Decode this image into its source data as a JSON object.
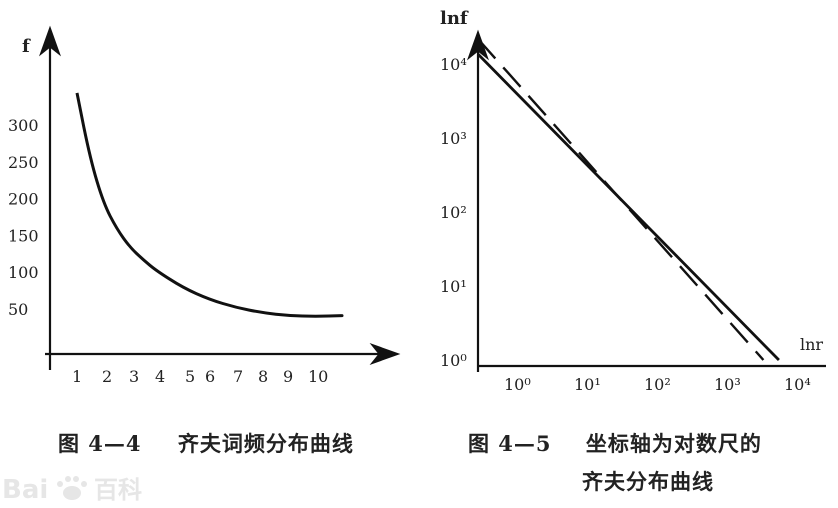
{
  "chart_data": [
    {
      "type": "line",
      "ylabel": "f",
      "x_ticks": [
        "1",
        "2",
        "3",
        "4",
        "5",
        "6",
        "7",
        "8",
        "9",
        "10"
      ],
      "y_ticks": [
        "300",
        "250",
        "200",
        "150",
        "100",
        "50"
      ],
      "series": [
        {
          "x": [
            1,
            1.5,
            2,
            2.5,
            3,
            3.5,
            4,
            5,
            6,
            7,
            8,
            9,
            10,
            11
          ],
          "y": [
            345,
            255,
            195,
            160,
            135,
            118,
            103,
            80,
            64,
            53,
            46,
            42,
            41,
            42
          ]
        }
      ]
    },
    {
      "type": "line",
      "xlabel": "lnr",
      "ylabel": "lnf",
      "log_scale": true,
      "x_ticks": [
        "10⁰",
        "10¹",
        "10²",
        "10³",
        "10⁴"
      ],
      "y_ticks": [
        "10⁴",
        "10³",
        "10²",
        "10¹",
        "10⁰"
      ],
      "series": [
        {
          "style": "solid",
          "x": [
            1,
            5000
          ],
          "y": [
            3600,
            1
          ]
        },
        {
          "style": "dashed",
          "x": [
            1,
            3000
          ],
          "y": [
            5000,
            1
          ]
        }
      ]
    }
  ],
  "captions": {
    "left_num": "图 4—4",
    "left_text": "齐夫词频分布曲线",
    "right_num": "图 4—5",
    "right_text_1": "坐标轴为对数尺的",
    "right_text_2": "齐夫分布曲线"
  },
  "watermark": "Bai百科"
}
